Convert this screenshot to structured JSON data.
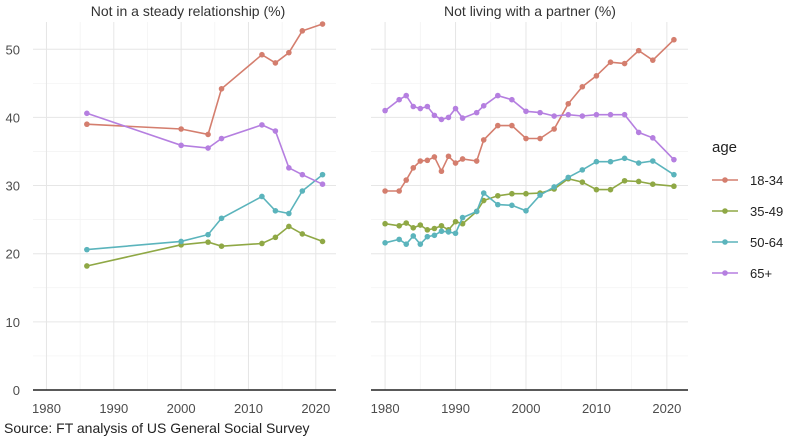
{
  "colors": {
    "18-34": "#D47E6E",
    "35-49": "#8FA845",
    "50-64": "#5BB4BC",
    "65+": "#B57FE0"
  },
  "legend": {
    "title": "age",
    "labels": [
      "18-34",
      "35-49",
      "50-64",
      "65+"
    ]
  },
  "source": "Source: FT analysis of US General Social Survey",
  "chart_data": [
    {
      "type": "line",
      "title": "Not in a steady relationship (%)",
      "xlabel": "",
      "ylabel": "",
      "xlim": [
        1978,
        2023
      ],
      "ylim": [
        0,
        54
      ],
      "xticks": [
        1980,
        1990,
        2000,
        2010,
        2020
      ],
      "yticks": [
        0,
        10,
        20,
        30,
        40,
        50
      ],
      "series": [
        {
          "name": "18-34",
          "x": [
            1986,
            2000,
            2004,
            2006,
            2012,
            2014,
            2016,
            2018,
            2021
          ],
          "values": [
            39.0,
            38.3,
            37.5,
            44.2,
            49.2,
            48.0,
            49.5,
            52.7,
            53.7
          ]
        },
        {
          "name": "35-49",
          "x": [
            1986,
            2000,
            2004,
            2006,
            2012,
            2014,
            2016,
            2018,
            2021
          ],
          "values": [
            18.2,
            21.3,
            21.7,
            21.1,
            21.5,
            22.4,
            24.0,
            22.9,
            21.8
          ]
        },
        {
          "name": "50-64",
          "x": [
            1986,
            2000,
            2004,
            2006,
            2012,
            2014,
            2016,
            2018,
            2021
          ],
          "values": [
            20.6,
            21.8,
            22.8,
            25.2,
            28.4,
            26.3,
            25.9,
            29.2,
            31.6
          ]
        },
        {
          "name": "65+",
          "x": [
            1986,
            2000,
            2004,
            2006,
            2012,
            2014,
            2016,
            2018,
            2021
          ],
          "values": [
            40.6,
            35.9,
            35.5,
            36.9,
            38.9,
            38.0,
            32.6,
            31.6,
            30.2
          ]
        }
      ]
    },
    {
      "type": "line",
      "title": "Not living with a partner (%)",
      "xlabel": "",
      "ylabel": "",
      "xlim": [
        1978,
        2023
      ],
      "ylim": [
        0,
        54
      ],
      "xticks": [
        1980,
        1990,
        2000,
        2010,
        2020
      ],
      "yticks": [
        0,
        10,
        20,
        30,
        40,
        50
      ],
      "series": [
        {
          "name": "18-34",
          "x": [
            1980,
            1982,
            1983,
            1984,
            1985,
            1986,
            1987,
            1988,
            1989,
            1990,
            1991,
            1993,
            1994,
            1996,
            1998,
            2000,
            2002,
            2004,
            2006,
            2008,
            2010,
            2012,
            2014,
            2016,
            2018,
            2021
          ],
          "values": [
            29.2,
            29.2,
            30.8,
            32.6,
            33.6,
            33.7,
            34.2,
            32.1,
            34.3,
            33.3,
            33.9,
            33.6,
            36.7,
            38.8,
            38.8,
            36.9,
            36.9,
            38.3,
            42.0,
            44.5,
            46.1,
            48.1,
            47.9,
            49.8,
            48.4,
            51.4
          ]
        },
        {
          "name": "35-49",
          "x": [
            1980,
            1982,
            1983,
            1984,
            1985,
            1986,
            1987,
            1988,
            1989,
            1990,
            1991,
            1993,
            1994,
            1996,
            1998,
            2000,
            2002,
            2004,
            2006,
            2008,
            2010,
            2012,
            2014,
            2016,
            2018,
            2021
          ],
          "values": [
            24.4,
            24.1,
            24.5,
            23.8,
            24.2,
            23.5,
            23.7,
            24.1,
            23.5,
            24.7,
            24.4,
            26.2,
            27.8,
            28.5,
            28.8,
            28.8,
            28.9,
            29.5,
            31.0,
            30.5,
            29.4,
            29.4,
            30.7,
            30.6,
            30.2,
            29.9
          ]
        },
        {
          "name": "50-64",
          "x": [
            1980,
            1982,
            1983,
            1984,
            1985,
            1986,
            1987,
            1988,
            1989,
            1990,
            1991,
            1993,
            1994,
            1996,
            1998,
            2000,
            2002,
            2004,
            2006,
            2008,
            2010,
            2012,
            2014,
            2016,
            2018,
            2021
          ],
          "values": [
            21.6,
            22.1,
            21.4,
            22.6,
            21.4,
            22.5,
            22.7,
            23.3,
            23.2,
            23.0,
            25.3,
            26.2,
            28.9,
            27.2,
            27.1,
            26.3,
            28.6,
            29.8,
            31.2,
            32.3,
            33.5,
            33.5,
            34.0,
            33.3,
            33.6,
            31.6
          ]
        },
        {
          "name": "65+",
          "x": [
            1980,
            1982,
            1983,
            1984,
            1985,
            1986,
            1987,
            1988,
            1989,
            1990,
            1991,
            1993,
            1994,
            1996,
            1998,
            2000,
            2002,
            2004,
            2006,
            2008,
            2010,
            2012,
            2014,
            2016,
            2018,
            2021
          ],
          "values": [
            41.0,
            42.6,
            43.2,
            41.6,
            41.3,
            41.6,
            40.3,
            39.7,
            40.0,
            41.3,
            39.9,
            40.7,
            41.7,
            43.2,
            42.6,
            40.9,
            40.7,
            40.2,
            40.4,
            40.2,
            40.4,
            40.4,
            40.4,
            37.8,
            37.0,
            33.8
          ]
        }
      ]
    }
  ]
}
